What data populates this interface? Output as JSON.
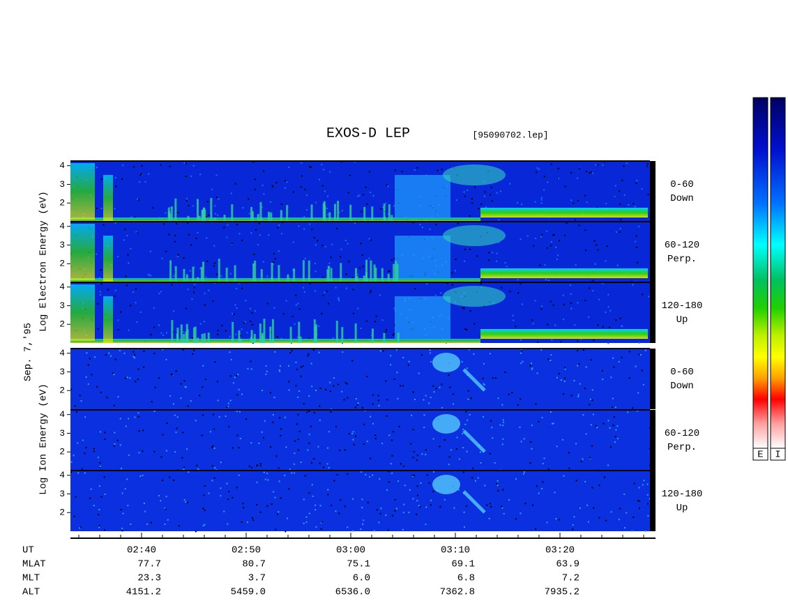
{
  "title": "EXOS-D LEP",
  "file": "[95090702.lep]",
  "date": "Sep. 7,'95",
  "axis": {
    "electron_label": "Log Electron Energy (eV)",
    "ion_label": "Log Ion Energy (eV)",
    "ylim": [
      1,
      4.25
    ],
    "yticks": [
      2,
      3,
      4
    ],
    "xlim": [
      33.2,
      89
    ],
    "xticks": [
      {
        "value": 40,
        "label": "02:40"
      },
      {
        "value": 50,
        "label": "02:50"
      },
      {
        "value": 60,
        "label": "03:00"
      },
      {
        "value": 70,
        "label": "03:10"
      },
      {
        "value": 80,
        "label": "03:20"
      }
    ],
    "xminorticks": [
      34,
      36,
      38,
      42,
      44,
      46,
      48,
      52,
      54,
      56,
      58,
      62,
      64,
      66,
      68,
      72,
      74,
      76,
      78,
      82,
      84,
      86,
      88
    ]
  },
  "panels": [
    {
      "species": "electron",
      "label": "0-60",
      "sublabel": "Down"
    },
    {
      "species": "electron",
      "label": "60-120",
      "sublabel": "Perp."
    },
    {
      "species": "electron",
      "label": "120-180",
      "sublabel": "Up"
    },
    {
      "species": "ion",
      "label": "0-60",
      "sublabel": "Down"
    },
    {
      "species": "ion",
      "label": "60-120",
      "sublabel": "Perp."
    },
    {
      "species": "ion",
      "label": "120-180",
      "sublabel": "Up"
    }
  ],
  "orbit": {
    "rows": [
      {
        "name": "UT",
        "values": []
      },
      {
        "name": "MLAT",
        "values": [
          "77.7",
          "80.7",
          "75.1",
          "69.1",
          "63.9"
        ]
      },
      {
        "name": "MLT",
        "values": [
          "23.3",
          "3.7",
          "6.0",
          "6.8",
          "7.2"
        ]
      },
      {
        "name": "ALT",
        "values": [
          "4151.2",
          "5459.0",
          "6536.0",
          "7362.8",
          "7935.2"
        ]
      }
    ]
  },
  "colorbars": [
    "E",
    "I"
  ]
}
